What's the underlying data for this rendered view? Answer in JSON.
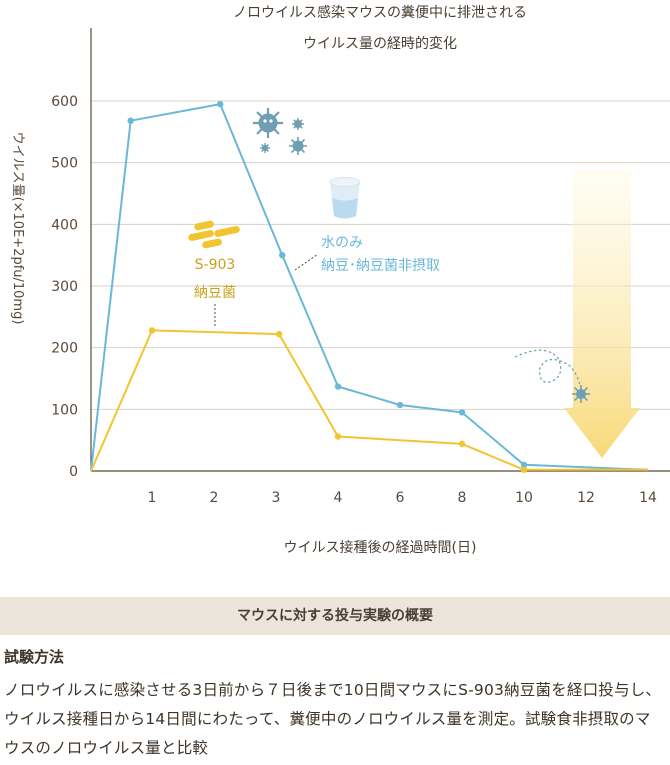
{
  "chart_data": {
    "type": "line",
    "title_line1": "ノロウイルス感染マウスの糞便中に排泄される",
    "title_line2": "ウイルス量の経時的変化",
    "xlabel": "ウイルス接種後の経過時間(日)",
    "ylabel": "ウイルス量(×10E+2pfu/10mg)",
    "ylim": [
      0,
      600
    ],
    "yticks": [
      "0",
      "100",
      "200",
      "300",
      "400",
      "500",
      "600"
    ],
    "x_ticks": [
      "1",
      "2",
      "3",
      "4",
      "6",
      "8",
      "10",
      "12",
      "14"
    ],
    "grid": true,
    "series": [
      {
        "name_line1": "水のみ",
        "name_line2": "納豆･納豆菌非摂取",
        "color": "#6ab8d8",
        "points": [
          {
            "x": 0,
            "y": 0
          },
          {
            "x": 0.65,
            "y": 568
          },
          {
            "x": 2.1,
            "y": 595
          },
          {
            "x": 3.1,
            "y": 350
          },
          {
            "x": 4,
            "y": 137
          },
          {
            "x": 6,
            "y": 107
          },
          {
            "x": 8,
            "y": 95
          },
          {
            "x": 10,
            "y": 10
          },
          {
            "x": 14,
            "y": 2
          }
        ]
      },
      {
        "name_line1": "S-903",
        "name_line2": "納豆菌",
        "color": "#f2c530",
        "points": [
          {
            "x": 0,
            "y": 0
          },
          {
            "x": 1,
            "y": 228
          },
          {
            "x": 3.05,
            "y": 222
          },
          {
            "x": 4,
            "y": 56
          },
          {
            "x": 8,
            "y": 44
          },
          {
            "x": 10,
            "y": 2
          },
          {
            "x": 14,
            "y": 2
          }
        ]
      }
    ]
  },
  "summary": {
    "title": "マウスに対する投与実験の概要"
  },
  "method": {
    "heading": "試験方法",
    "body": "ノロウイルスに感染させる3日前から７日後まで10日間マウスにS-903納豆菌を経口投与し、ウイルス接種日から14日間にわたって、糞便中のノロウイルス量を測定。試験食非摂取のマウスのノロウイルス量と比較"
  },
  "colors": {
    "axis": "#5a4a3a",
    "grid": "#d8d2c8",
    "water_series": "#6ab8d8",
    "natto_series": "#f2c530",
    "virus_icon": "#6e9fb4",
    "arrow": "#f8dc80"
  }
}
